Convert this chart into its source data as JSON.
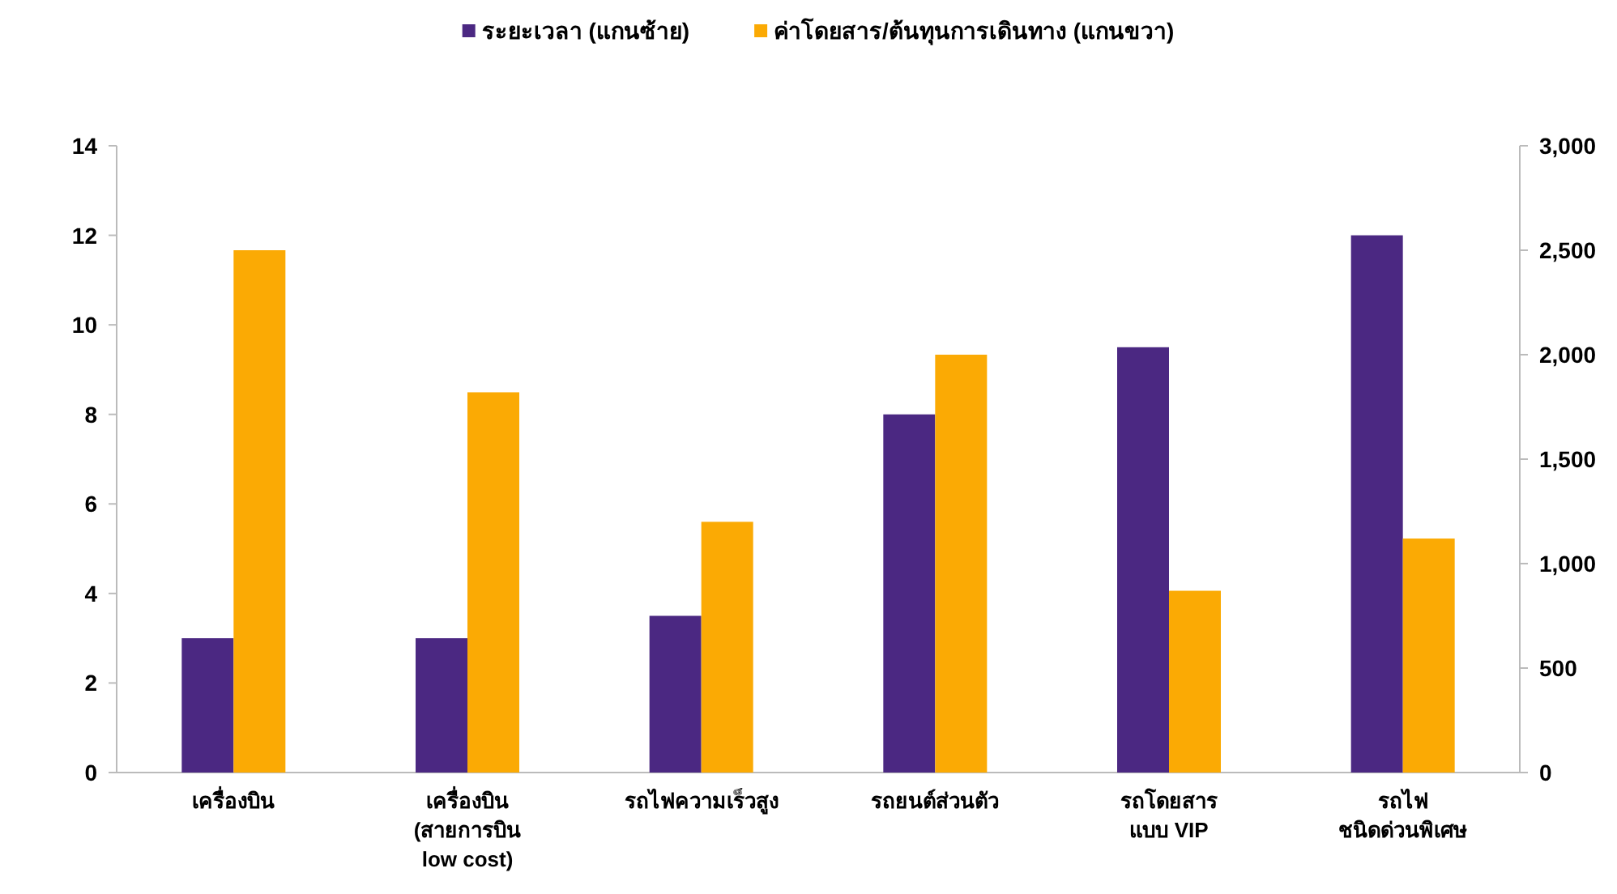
{
  "chart_data": {
    "type": "bar",
    "categories": [
      "เครื่องบิน",
      "เครื่องบิน\n(สายการบิน\nlow cost)",
      "รถไฟความเร็วสูง",
      "รถยนต์ส่วนตัว",
      "รถโดยสาร\nแบบ VIP",
      "รถไฟ\nชนิดด่วนพิเศษ"
    ],
    "series": [
      {
        "name": "ระยะเวลา (แกนซ้าย)",
        "color": "#4b2882",
        "values": [
          3,
          3,
          3.5,
          8,
          9.5,
          12
        ]
      },
      {
        "name": "ค่าโดยสาร/ต้นทุนการเดินทาง (แกนขวา)",
        "color": "#fbaa04",
        "axis": "y2",
        "values": [
          2500,
          1820,
          1200,
          2000,
          870,
          1120
        ]
      }
    ],
    "ylim": [
      0,
      14
    ],
    "yticks": [
      0,
      2,
      4,
      6,
      8,
      10,
      12,
      14
    ],
    "y2lim": [
      0,
      3000
    ],
    "y2ticks": [
      0,
      {
        "value": 500,
        "label": "500"
      },
      {
        "value": 1000,
        "label": "1,000"
      },
      {
        "value": 1500,
        "label": "1,500"
      },
      {
        "value": 2000,
        "label": "2,000"
      },
      {
        "value": 2500,
        "label": "2,500"
      },
      {
        "value": 3000,
        "label": "3,000"
      }
    ],
    "legend": "top",
    "grid": false
  }
}
